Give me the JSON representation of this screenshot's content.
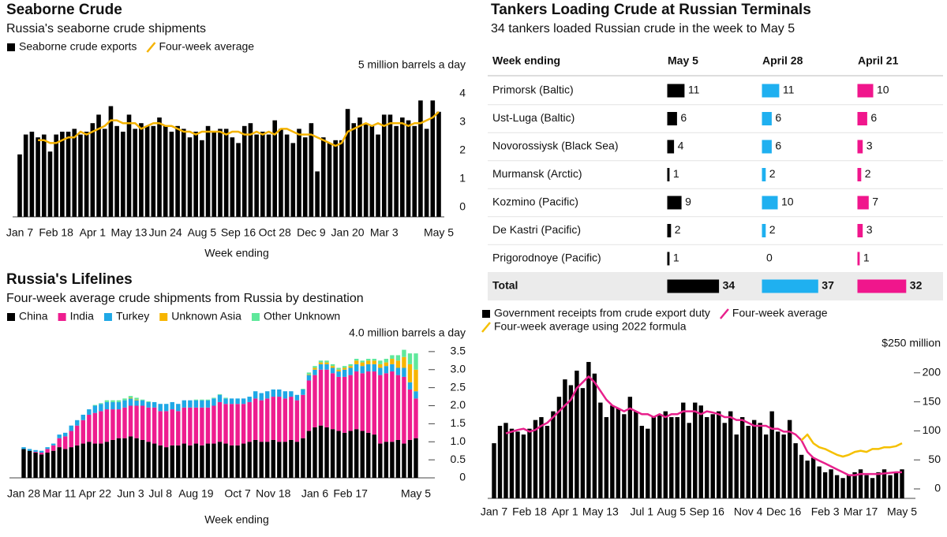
{
  "chart_data": [
    {
      "type": "combo",
      "title": "Seaborne Crude",
      "subtitle": "Russia's seaborne crude shipments",
      "x_label": "Week ending",
      "categories": [
        "Jan 7",
        null,
        null,
        null,
        null,
        null,
        "Feb 18",
        null,
        null,
        null,
        null,
        null,
        "Apr 1",
        null,
        null,
        null,
        null,
        null,
        "May 13",
        null,
        null,
        null,
        null,
        null,
        "Jun 24",
        null,
        null,
        null,
        null,
        null,
        "Aug 5",
        null,
        null,
        null,
        null,
        null,
        "Sep 16",
        null,
        null,
        null,
        null,
        null,
        "Oct 28",
        null,
        null,
        null,
        null,
        null,
        "Dec 9",
        null,
        null,
        null,
        null,
        null,
        "Jan 20",
        null,
        null,
        null,
        null,
        null,
        "Mar 3",
        null,
        null,
        null,
        null,
        null,
        null,
        null,
        null,
        "May 5"
      ],
      "series": [
        {
          "name": "Seaborne crude exports",
          "type": "bar",
          "color": "#000000",
          "values": [
            2.2,
            2.9,
            3.0,
            2.8,
            2.9,
            2.3,
            2.9,
            3.0,
            3.0,
            3.1,
            2.9,
            3.0,
            3.3,
            3.6,
            3.1,
            3.9,
            3.2,
            3.0,
            3.6,
            3.1,
            3.3,
            3.2,
            3.2,
            3.5,
            3.2,
            3.0,
            3.2,
            3.1,
            2.8,
            3.0,
            2.7,
            3.2,
            3.0,
            3.1,
            3.1,
            2.8,
            2.6,
            3.2,
            3.3,
            2.9,
            3.0,
            2.9,
            3.4,
            3.1,
            2.9,
            2.6,
            3.1,
            2.8,
            3.3,
            1.6,
            2.8,
            2.6,
            2.7,
            2.7,
            3.8,
            3.3,
            3.5,
            3.3,
            3.2,
            2.9,
            3.6,
            3.6,
            3.2,
            3.5,
            3.4,
            3.2,
            4.1,
            3.1,
            4.1,
            3.7
          ]
        },
        {
          "name": "Four-week average",
          "type": "line",
          "color": "#f5b301",
          "values": [
            null,
            null,
            null,
            2.7,
            2.7,
            2.6,
            2.6,
            2.7,
            2.8,
            2.8,
            3.0,
            2.9,
            3.0,
            3.1,
            3.2,
            3.4,
            3.4,
            3.3,
            3.3,
            3.3,
            3.1,
            3.2,
            3.3,
            3.3,
            3.2,
            3.2,
            3.1,
            3.0,
            3.0,
            2.9,
            3.0,
            3.0,
            3.0,
            3.0,
            2.9,
            3.0,
            3.0,
            2.9,
            2.9,
            3.0,
            2.9,
            3.0,
            2.9,
            3.1,
            3.1,
            3.0,
            2.9,
            2.9,
            2.9,
            2.8,
            2.7,
            2.6,
            2.5,
            2.6,
            3.0,
            3.1,
            3.2,
            3.3,
            3.2,
            3.3,
            3.2,
            3.3,
            3.3,
            3.3,
            3.2,
            3.3,
            3.3,
            3.4,
            3.5,
            3.7
          ]
        }
      ],
      "ylim": [
        0,
        5
      ],
      "yticks": [
        0,
        1,
        2,
        3,
        4,
        {
          "value": 5,
          "label": "5 million barrels a day"
        }
      ]
    },
    {
      "type": "stacked_bar",
      "title": "Russia's Lifelines",
      "subtitle": "Four-week average crude shipments from Russia by destination",
      "x_label": "Week ending",
      "categories": [
        "Jan 28",
        null,
        null,
        null,
        null,
        null,
        "Mar 11",
        null,
        null,
        null,
        null,
        null,
        "Apr 22",
        null,
        null,
        null,
        null,
        null,
        "Jun 3",
        null,
        null,
        null,
        null,
        "Jul 8",
        null,
        null,
        null,
        null,
        null,
        "Aug 19",
        null,
        null,
        null,
        null,
        null,
        null,
        "Oct 7",
        null,
        null,
        null,
        null,
        null,
        "Nov 18",
        null,
        null,
        null,
        null,
        null,
        null,
        "Jan 6",
        null,
        null,
        null,
        null,
        null,
        "Feb 17",
        null,
        null,
        null,
        null,
        null,
        null,
        null,
        null,
        null,
        null,
        "May 5"
      ],
      "series": [
        {
          "name": "China",
          "color": "#000000",
          "values": [
            0.8,
            0.75,
            0.7,
            0.65,
            0.7,
            0.75,
            0.85,
            0.8,
            0.85,
            0.9,
            0.95,
            1.0,
            0.95,
            0.95,
            1.0,
            1.05,
            1.1,
            1.1,
            1.15,
            1.1,
            1.05,
            1.0,
            0.95,
            0.9,
            0.85,
            0.9,
            0.9,
            0.95,
            0.9,
            0.95,
            0.9,
            0.95,
            0.95,
            1.0,
            0.95,
            0.9,
            0.9,
            0.95,
            1.0,
            1.05,
            1.0,
            1.0,
            1.05,
            1.0,
            1.0,
            1.05,
            1.0,
            1.1,
            1.3,
            1.4,
            1.45,
            1.4,
            1.35,
            1.3,
            1.25,
            1.3,
            1.35,
            1.3,
            1.25,
            1.2,
            0.95,
            1.0,
            1.0,
            1.05,
            0.95,
            1.05,
            1.1
          ]
        },
        {
          "name": "India",
          "color": "#ee1d8f",
          "values": [
            0.0,
            0.0,
            0.02,
            0.05,
            0.1,
            0.15,
            0.25,
            0.35,
            0.45,
            0.55,
            0.65,
            0.75,
            0.85,
            0.9,
            0.9,
            0.85,
            0.8,
            0.85,
            0.85,
            0.9,
            0.95,
            0.95,
            1.0,
            0.95,
            1.0,
            1.0,
            0.95,
            1.0,
            1.05,
            1.0,
            1.05,
            1.0,
            1.05,
            1.1,
            1.1,
            1.15,
            1.15,
            1.1,
            1.1,
            1.15,
            1.15,
            1.2,
            1.2,
            1.25,
            1.2,
            1.2,
            1.15,
            1.2,
            1.4,
            1.45,
            1.55,
            1.6,
            1.55,
            1.5,
            1.55,
            1.55,
            1.6,
            1.6,
            1.7,
            1.75,
            1.9,
            1.9,
            1.95,
            1.8,
            1.85,
            1.4,
            1.1
          ]
        },
        {
          "name": "Turkey",
          "color": "#1fa8e6",
          "values": [
            0.05,
            0.05,
            0.05,
            0.05,
            0.05,
            0.05,
            0.1,
            0.1,
            0.15,
            0.15,
            0.15,
            0.15,
            0.2,
            0.2,
            0.2,
            0.2,
            0.2,
            0.2,
            0.2,
            0.15,
            0.15,
            0.15,
            0.15,
            0.2,
            0.2,
            0.2,
            0.2,
            0.2,
            0.2,
            0.2,
            0.2,
            0.2,
            0.2,
            0.2,
            0.15,
            0.15,
            0.15,
            0.15,
            0.15,
            0.2,
            0.2,
            0.2,
            0.2,
            0.2,
            0.2,
            0.15,
            0.15,
            0.15,
            0.15,
            0.15,
            0.15,
            0.15,
            0.15,
            0.15,
            0.2,
            0.2,
            0.2,
            0.2,
            0.2,
            0.2,
            0.2,
            0.2,
            0.2,
            0.2,
            0.25,
            0.2,
            0.2
          ]
        },
        {
          "name": "Unknown Asia",
          "color": "#f7b500",
          "values": [
            0,
            0,
            0,
            0,
            0,
            0,
            0,
            0,
            0,
            0,
            0,
            0,
            0,
            0,
            0,
            0,
            0,
            0,
            0.02,
            0.02,
            0,
            0,
            0,
            0,
            0,
            0,
            0,
            0,
            0,
            0,
            0,
            0,
            0,
            0,
            0,
            0,
            0,
            0,
            0,
            0,
            0,
            0,
            0,
            0,
            0,
            0,
            0,
            0,
            0.02,
            0.05,
            0.05,
            0.05,
            0.05,
            0.05,
            0.05,
            0.05,
            0.1,
            0.1,
            0.1,
            0.1,
            0.1,
            0.1,
            0.15,
            0.2,
            0.3,
            0.5,
            0.6
          ]
        },
        {
          "name": "Other Unknown",
          "color": "#5fe89b",
          "values": [
            0,
            0,
            0,
            0,
            0,
            0,
            0,
            0,
            0,
            0,
            0,
            0,
            0.02,
            0.02,
            0.05,
            0.05,
            0.05,
            0.05,
            0.05,
            0.05,
            0.02,
            0.02,
            0,
            0,
            0,
            0,
            0,
            0,
            0,
            0.02,
            0.02,
            0.02,
            0.02,
            0.02,
            0.02,
            0,
            0,
            0,
            0,
            0,
            0,
            0,
            0,
            0,
            0,
            0,
            0,
            0.02,
            0.05,
            0.05,
            0.05,
            0.05,
            0.05,
            0.05,
            0.05,
            0.05,
            0.05,
            0.05,
            0.05,
            0.05,
            0.1,
            0.1,
            0.1,
            0.15,
            0.2,
            0.3,
            0.45
          ]
        }
      ],
      "ylim": [
        0,
        4
      ],
      "yticks": [
        0,
        0.5,
        {
          "value": 1,
          "label": "1.0"
        },
        1.5,
        {
          "value": 2,
          "label": "2.0"
        },
        2.5,
        {
          "value": 3,
          "label": "3.0"
        },
        3.5,
        {
          "value": 4,
          "label": "4.0 million barrels a day"
        }
      ]
    },
    {
      "type": "table",
      "title": "Tankers Loading Crude at Russian Terminals",
      "subtitle": "34 tankers loaded Russian crude in the week to May 5",
      "columns": [
        "Week ending",
        "May 5",
        "April 28",
        "April 21"
      ],
      "colors": [
        "#000000",
        "#1fb0f0",
        "#f0168c"
      ],
      "rows": [
        {
          "name": "Primorsk (Baltic)",
          "values": [
            11,
            11,
            10
          ]
        },
        {
          "name": "Ust-Luga (Baltic)",
          "values": [
            6,
            6,
            6
          ]
        },
        {
          "name": "Novorossiysk (Black Sea)",
          "values": [
            4,
            6,
            3
          ]
        },
        {
          "name": "Murmansk (Arctic)",
          "values": [
            1,
            2,
            2
          ]
        },
        {
          "name": "Kozmino (Pacific)",
          "values": [
            9,
            10,
            7
          ]
        },
        {
          "name": "De Kastri (Pacific)",
          "values": [
            2,
            2,
            3
          ]
        },
        {
          "name": "Prigorodnoye (Pacific)",
          "values": [
            1,
            0,
            1
          ]
        }
      ],
      "total": {
        "name": "Total",
        "values": [
          34,
          37,
          32
        ]
      }
    },
    {
      "type": "combo",
      "categories": [
        "Jan 7",
        null,
        null,
        null,
        null,
        null,
        "Feb 18",
        null,
        null,
        null,
        null,
        null,
        "Apr 1",
        null,
        null,
        null,
        null,
        null,
        "May 13",
        null,
        null,
        null,
        null,
        null,
        null,
        "Jul 1",
        null,
        null,
        null,
        null,
        "Aug 5",
        null,
        null,
        null,
        null,
        null,
        "Sep 16",
        null,
        null,
        null,
        null,
        null,
        null,
        "Nov 4",
        null,
        null,
        null,
        null,
        null,
        "Dec 16",
        null,
        null,
        null,
        null,
        null,
        null,
        "Feb 3",
        null,
        null,
        null,
        null,
        null,
        "Mar 17",
        null,
        null,
        null,
        null,
        null,
        null,
        "May 5"
      ],
      "series": [
        {
          "name": "Government receipts from crude export duty",
          "type": "bar",
          "color": "#000000",
          "values": [
            95,
            125,
            130,
            120,
            115,
            110,
            120,
            135,
            140,
            125,
            150,
            175,
            205,
            195,
            220,
            190,
            235,
            215,
            165,
            140,
            160,
            155,
            145,
            175,
            150,
            125,
            120,
            140,
            145,
            150,
            140,
            140,
            165,
            130,
            165,
            160,
            140,
            145,
            150,
            130,
            150,
            110,
            140,
            125,
            135,
            130,
            110,
            150,
            115,
            110,
            135,
            95,
            75,
            65,
            70,
            55,
            45,
            50,
            40,
            35,
            40,
            45,
            50,
            40,
            35,
            45,
            50,
            40,
            45,
            50
          ]
        },
        {
          "name": "Four-week average",
          "type": "line",
          "color": "#e8208c",
          "values": [
            null,
            null,
            112,
            115,
            118,
            120,
            115,
            118,
            125,
            130,
            140,
            150,
            160,
            170,
            190,
            200,
            210,
            200,
            185,
            170,
            160,
            155,
            150,
            155,
            150,
            145,
            145,
            140,
            145,
            140,
            145,
            145,
            150,
            150,
            150,
            145,
            150,
            148,
            145,
            140,
            140,
            135,
            135,
            130,
            125,
            125,
            125,
            120,
            120,
            115,
            115,
            110,
            100,
            80,
            70,
            65,
            60,
            55,
            50,
            45,
            40,
            40,
            42,
            42,
            42,
            42,
            43,
            44,
            45,
            45
          ]
        },
        {
          "name": "Four-week average using 2022 formula",
          "type": "line",
          "color": "#f5c000",
          "values": [
            null,
            null,
            null,
            null,
            null,
            null,
            null,
            null,
            null,
            null,
            null,
            null,
            null,
            null,
            null,
            null,
            null,
            null,
            null,
            null,
            null,
            null,
            null,
            null,
            null,
            null,
            null,
            null,
            null,
            null,
            null,
            null,
            null,
            null,
            null,
            null,
            null,
            null,
            null,
            null,
            null,
            null,
            null,
            null,
            null,
            null,
            null,
            null,
            null,
            null,
            null,
            null,
            100,
            110,
            95,
            88,
            85,
            80,
            75,
            72,
            75,
            80,
            82,
            80,
            85,
            85,
            88,
            88,
            90,
            95
          ]
        }
      ],
      "ylim": [
        0,
        250
      ],
      "yticks": [
        0,
        50,
        100,
        150,
        200,
        {
          "value": 250,
          "label": "$250 million"
        }
      ]
    }
  ]
}
